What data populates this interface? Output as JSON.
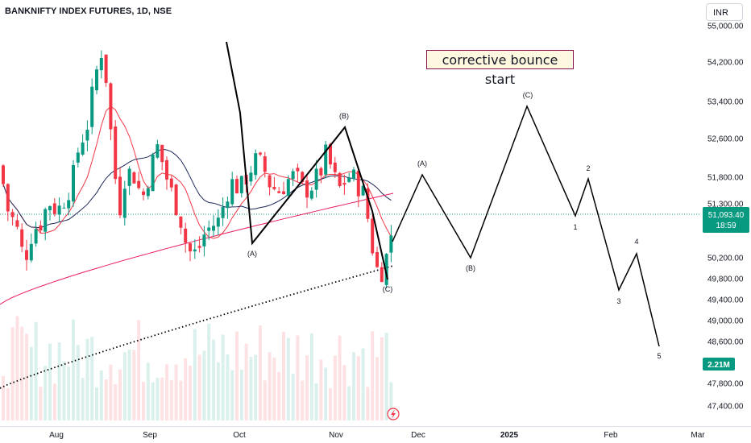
{
  "header": {
    "title": "BANKNIFTY INDEX FUTURES, 1D, NSE"
  },
  "currency_button": {
    "label": "INR"
  },
  "annotation": {
    "text": "corrective bounce start"
  },
  "price_badge": {
    "value": "51,093.40",
    "countdown": "18:59",
    "color": "#089981"
  },
  "volume_badge": {
    "value": "2.21M",
    "color": "#089981"
  },
  "colors": {
    "up": "#089981",
    "down": "#f23645",
    "ema_short": "#f23645",
    "ema_mid": "#1e2a5a",
    "ema_long": "#e91e63",
    "wave": "#000000"
  },
  "chart_data": {
    "type": "candlestick",
    "title": "BANKNIFTY INDEX FUTURES, 1D, NSE",
    "y_axis_ticks": [
      "55,000.00",
      "54,200.00",
      "53,400.00",
      "52,600.00",
      "51,800.00",
      "51,300.00",
      "50,200.00",
      "49,800.00",
      "49,400.00",
      "49,000.00",
      "48,600.00",
      "47,800.00",
      "47,400.00"
    ],
    "x_axis_ticks": [
      "Aug",
      "Sep",
      "Oct",
      "Nov",
      "Dec",
      "2025",
      "Feb",
      "Mar"
    ],
    "current_price": 51093.4,
    "elliott_labels": {
      "past": [
        {
          "label": "(A)",
          "x": "Oct",
          "price": 50500
        },
        {
          "label": "(B)",
          "x": "Nov",
          "price": 52800
        },
        {
          "label": "(C)",
          "x": "Nov-end",
          "price": 49800
        }
      ],
      "projected": [
        {
          "label": "(A)",
          "price": 51850
        },
        {
          "label": "(B)",
          "price": 50200
        },
        {
          "label": "(C)",
          "price": 53250
        },
        {
          "label": "1",
          "price": 51100
        },
        {
          "label": "2",
          "price": 51750
        },
        {
          "label": "3",
          "price": 49600
        },
        {
          "label": "4",
          "price": 50300
        },
        {
          "label": "5",
          "price": 48500
        }
      ]
    },
    "volume_last": "2.21M",
    "grid": false
  }
}
